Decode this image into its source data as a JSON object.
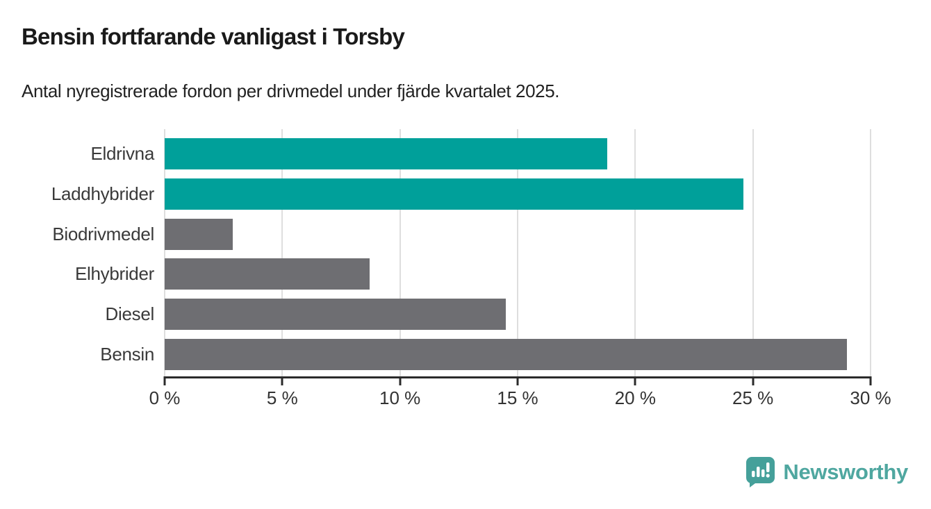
{
  "header": {
    "title": "Bensin fortfarande vanligast i Torsby",
    "subtitle": "Antal nyregistrerade fordon per drivmedel under fjärde kvartalet 2025."
  },
  "chart_data": {
    "type": "bar",
    "orientation": "horizontal",
    "title": "Bensin fortfarande vanligast i Torsby",
    "subtitle": "Antal nyregistrerade fordon per drivmedel under fjärde kvartalet 2025.",
    "categories": [
      "Eldrivna",
      "Laddhybrider",
      "Biodrivmedel",
      "Elhybrider",
      "Diesel",
      "Bensin"
    ],
    "values": [
      18.8,
      24.6,
      2.9,
      8.7,
      14.5,
      29
    ],
    "unit": "%",
    "bar_colors": [
      "#00a09a",
      "#00a09a",
      "#6e6e72",
      "#6e6e72",
      "#6e6e72",
      "#6e6e72"
    ],
    "xlabel": "",
    "ylabel": "",
    "xlim": [
      0,
      30
    ],
    "x_ticks": [
      0,
      5,
      10,
      15,
      20,
      25,
      30
    ],
    "x_tick_labels": [
      "0 %",
      "5 %",
      "10 %",
      "15 %",
      "20 %",
      "25 %",
      "30 %"
    ],
    "grid": "vertical",
    "legend": "none"
  },
  "footer": {
    "brand": "Newsworthy",
    "logo_icon": "newsworthy-chart-bubble-icon"
  },
  "colors": {
    "accent_teal": "#00a09a",
    "bar_gray": "#6e6e72",
    "gridline": "#dedede",
    "axis": "#2b2b2b",
    "title_text": "#1a1a1a",
    "label_text": "#3a3a3a",
    "brand_teal": "#4fa7a0",
    "logo_fill": "#45a09a"
  }
}
